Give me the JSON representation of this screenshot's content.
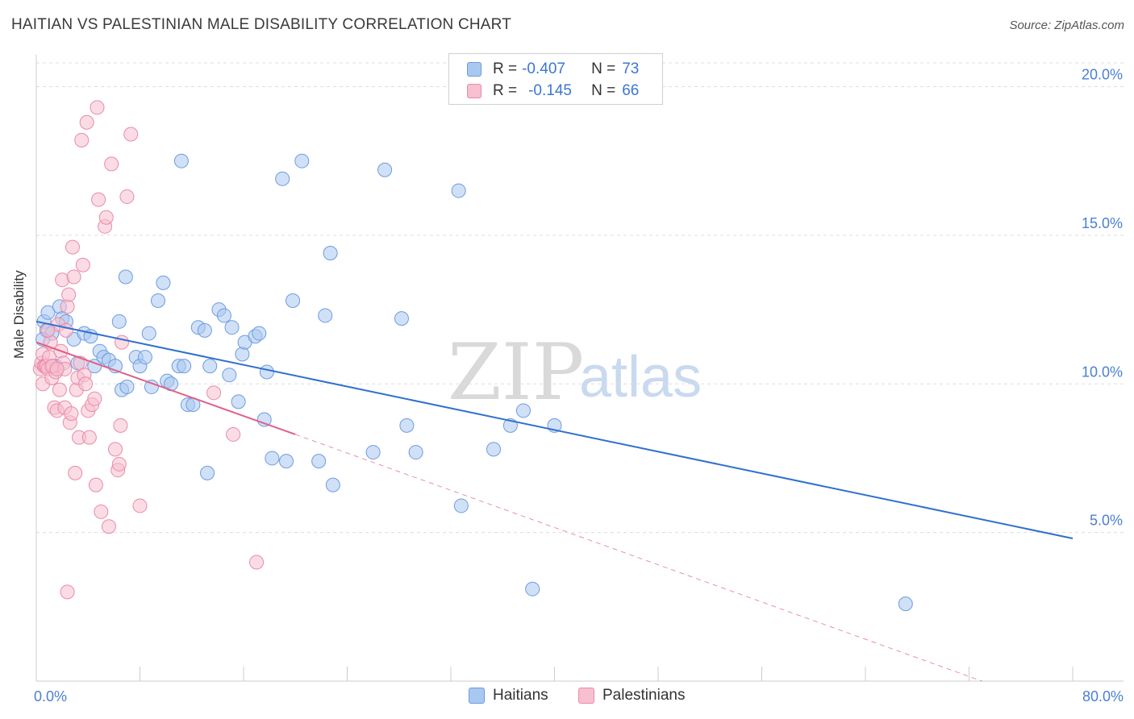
{
  "header": {
    "title": "HAITIAN VS PALESTINIAN MALE DISABILITY CORRELATION CHART",
    "source": "Source: ZipAtlas.com"
  },
  "watermark": {
    "zip": "ZIP",
    "atlas": "atlas"
  },
  "legend": {
    "rows": [
      {
        "r_label": "R =",
        "r_value": "-0.407",
        "n_label": "N =",
        "n_value": "73",
        "color": "#a9c8f0",
        "border": "#6d9be0"
      },
      {
        "r_label": "R =",
        "r_value": "-0.145",
        "n_label": "N =",
        "n_value": "66",
        "color": "#f7bfd0",
        "border": "#e98aa9"
      }
    ]
  },
  "bottom_legend": {
    "items": [
      {
        "label": "Haitians",
        "color": "#a9c8f0",
        "border": "#6d9be0"
      },
      {
        "label": "Palestinians",
        "color": "#f7bfd0",
        "border": "#e98aa9"
      }
    ]
  },
  "chart_data": {
    "type": "scatter",
    "title": "HAITIAN VS PALESTINIAN MALE DISABILITY CORRELATION CHART",
    "xlabel": "",
    "ylabel": "Male Disability",
    "xlim": [
      0,
      80
    ],
    "ylim": [
      0,
      20.8
    ],
    "x_tick_labels": [
      "0.0%",
      "80.0%"
    ],
    "y_ticks": [
      5,
      10,
      15,
      20
    ],
    "y_tick_labels": [
      "5.0%",
      "10.0%",
      "15.0%",
      "20.0%"
    ],
    "grid": true,
    "legend_position": "top-center",
    "series": [
      {
        "name": "Haitians",
        "color": "#a9c8f0",
        "stroke": "#6d9be0",
        "trend_color": "#2f6fd0",
        "trend": {
          "x": [
            0,
            80
          ],
          "y": [
            12.1,
            4.8
          ]
        },
        "points": [
          [
            0.6,
            12.1
          ],
          [
            0.8,
            11.8
          ],
          [
            0.9,
            12.4
          ],
          [
            1.2,
            11.7
          ],
          [
            1.5,
            10.6
          ],
          [
            1.8,
            12.6
          ],
          [
            2.0,
            12.2
          ],
          [
            2.3,
            12.1
          ],
          [
            2.9,
            11.5
          ],
          [
            3.2,
            10.7
          ],
          [
            3.7,
            11.7
          ],
          [
            4.2,
            11.6
          ],
          [
            4.5,
            10.6
          ],
          [
            4.9,
            11.1
          ],
          [
            5.2,
            10.9
          ],
          [
            5.6,
            10.8
          ],
          [
            6.1,
            10.6
          ],
          [
            6.4,
            12.1
          ],
          [
            6.6,
            9.8
          ],
          [
            7.0,
            9.9
          ],
          [
            6.9,
            13.6
          ],
          [
            7.7,
            10.9
          ],
          [
            8.0,
            10.6
          ],
          [
            8.4,
            10.9
          ],
          [
            8.7,
            11.7
          ],
          [
            8.9,
            9.9
          ],
          [
            9.4,
            12.8
          ],
          [
            9.8,
            13.4
          ],
          [
            10.1,
            10.1
          ],
          [
            10.4,
            10.0
          ],
          [
            11.0,
            10.6
          ],
          [
            11.4,
            10.6
          ],
          [
            11.7,
            9.3
          ],
          [
            12.1,
            9.3
          ],
          [
            11.2,
            17.5
          ],
          [
            12.5,
            11.9
          ],
          [
            13.0,
            11.8
          ],
          [
            13.2,
            7.0
          ],
          [
            13.4,
            10.6
          ],
          [
            14.1,
            12.5
          ],
          [
            14.5,
            12.3
          ],
          [
            14.9,
            10.3
          ],
          [
            15.1,
            11.9
          ],
          [
            15.6,
            9.4
          ],
          [
            15.9,
            11.0
          ],
          [
            16.1,
            11.4
          ],
          [
            16.9,
            11.6
          ],
          [
            17.2,
            11.7
          ],
          [
            17.6,
            8.8
          ],
          [
            17.8,
            10.4
          ],
          [
            18.2,
            7.5
          ],
          [
            19.0,
            16.9
          ],
          [
            19.3,
            7.4
          ],
          [
            19.8,
            12.8
          ],
          [
            20.5,
            17.5
          ],
          [
            21.8,
            7.4
          ],
          [
            22.3,
            12.3
          ],
          [
            22.7,
            14.4
          ],
          [
            22.9,
            6.6
          ],
          [
            26.0,
            7.7
          ],
          [
            26.9,
            17.2
          ],
          [
            28.2,
            12.2
          ],
          [
            28.6,
            8.6
          ],
          [
            29.3,
            7.7
          ],
          [
            32.6,
            16.5
          ],
          [
            32.8,
            5.9
          ],
          [
            35.3,
            7.8
          ],
          [
            36.6,
            8.6
          ],
          [
            37.6,
            9.1
          ],
          [
            38.3,
            3.1
          ],
          [
            40.0,
            8.6
          ],
          [
            67.1,
            2.6
          ],
          [
            0.5,
            11.5
          ]
        ]
      },
      {
        "name": "Palestinians",
        "color": "#f7bfd0",
        "stroke": "#e98aa9",
        "trend_color": "#e0608a",
        "trend": {
          "x": [
            0,
            20
          ],
          "y": [
            11.4,
            8.3
          ]
        },
        "trend_dashed": {
          "x": [
            20,
            73
          ],
          "y": [
            8.3,
            0.0
          ]
        },
        "points": [
          [
            0.3,
            10.5
          ],
          [
            0.4,
            10.7
          ],
          [
            0.5,
            10.0
          ],
          [
            0.5,
            11.0
          ],
          [
            0.6,
            10.6
          ],
          [
            0.7,
            10.6
          ],
          [
            0.8,
            10.6
          ],
          [
            0.9,
            10.5
          ],
          [
            1.0,
            10.9
          ],
          [
            1.1,
            11.4
          ],
          [
            1.2,
            10.2
          ],
          [
            1.3,
            10.6
          ],
          [
            1.4,
            9.2
          ],
          [
            1.5,
            10.4
          ],
          [
            1.6,
            9.1
          ],
          [
            1.7,
            12.0
          ],
          [
            1.8,
            9.8
          ],
          [
            1.9,
            11.1
          ],
          [
            2.0,
            13.5
          ],
          [
            2.1,
            10.7
          ],
          [
            2.2,
            9.2
          ],
          [
            2.3,
            11.8
          ],
          [
            2.4,
            12.6
          ],
          [
            2.5,
            13.0
          ],
          [
            2.6,
            8.7
          ],
          [
            2.7,
            9.0
          ],
          [
            2.8,
            14.6
          ],
          [
            2.9,
            13.6
          ],
          [
            3.0,
            7.0
          ],
          [
            3.1,
            9.8
          ],
          [
            3.2,
            10.2
          ],
          [
            3.3,
            8.2
          ],
          [
            3.4,
            10.7
          ],
          [
            3.5,
            18.2
          ],
          [
            3.6,
            14.0
          ],
          [
            3.7,
            10.3
          ],
          [
            3.8,
            10.0
          ],
          [
            3.9,
            18.8
          ],
          [
            4.0,
            9.1
          ],
          [
            4.1,
            8.2
          ],
          [
            4.3,
            9.3
          ],
          [
            4.5,
            9.5
          ],
          [
            4.6,
            6.6
          ],
          [
            4.7,
            19.3
          ],
          [
            4.8,
            16.2
          ],
          [
            5.0,
            5.7
          ],
          [
            5.3,
            15.3
          ],
          [
            5.4,
            15.6
          ],
          [
            5.6,
            5.2
          ],
          [
            5.8,
            17.4
          ],
          [
            6.1,
            7.8
          ],
          [
            6.3,
            7.1
          ],
          [
            6.4,
            7.3
          ],
          [
            6.5,
            8.6
          ],
          [
            6.6,
            11.4
          ],
          [
            7.0,
            16.3
          ],
          [
            7.3,
            18.4
          ],
          [
            8.0,
            5.9
          ],
          [
            13.7,
            9.7
          ],
          [
            15.2,
            8.3
          ],
          [
            17.0,
            4.0
          ],
          [
            2.4,
            3.0
          ],
          [
            1.2,
            10.6
          ],
          [
            0.9,
            11.8
          ],
          [
            2.2,
            10.5
          ],
          [
            1.6,
            10.5
          ]
        ]
      }
    ]
  }
}
